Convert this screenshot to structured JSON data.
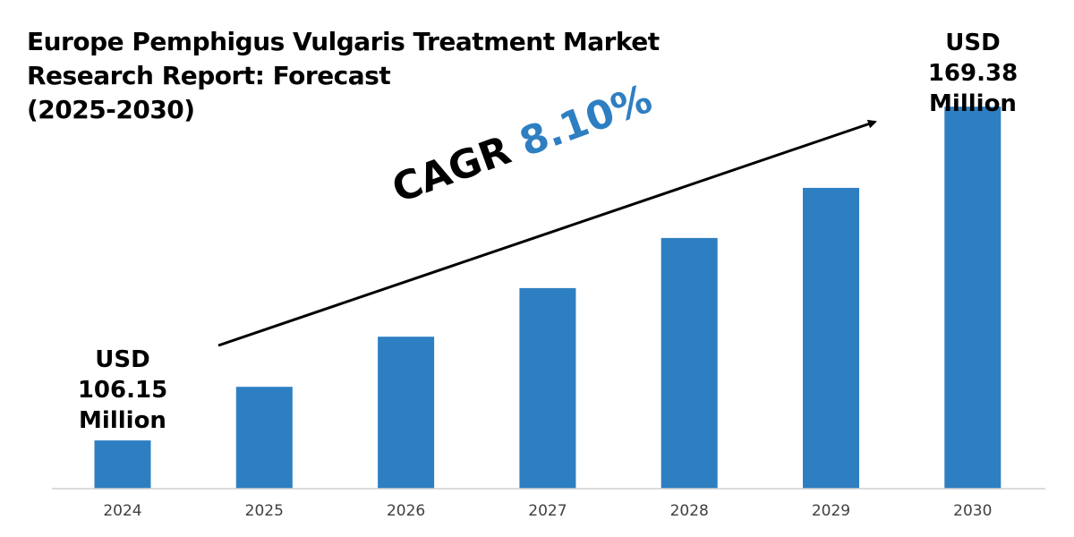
{
  "title_lines": [
    "Europe Pemphigus Vulgaris Treatment Market",
    "Research Report: Forecast",
    "(2025-2030)"
  ],
  "callouts": {
    "start": [
      "USD",
      "106.15",
      "Million"
    ],
    "end": [
      "USD",
      "169.38",
      "Million"
    ]
  },
  "cagr": {
    "label": "CAGR",
    "value": "8.10%"
  },
  "colors": {
    "bar": "#2e7fc2",
    "cagr_value": "#2e7fc2",
    "axis": "#d0d0d0",
    "tick_label": "#404040",
    "arrow": "#000000"
  },
  "chart_data": {
    "type": "bar",
    "title": "Europe Pemphigus Vulgaris Treatment Market Research Report: Forecast (2025-2030)",
    "categories": [
      "2024",
      "2025",
      "2026",
      "2027",
      "2028",
      "2029",
      "2030"
    ],
    "values": [
      106.15,
      116.3,
      125.8,
      135.0,
      144.5,
      154.0,
      169.38
    ],
    "value_unit": "USD Million",
    "xlabel": "",
    "ylabel": "",
    "ylim": [
      97,
      174
    ],
    "grid": false,
    "legend": "none",
    "annotations": [
      {
        "category": "2024",
        "text": "USD 106.15 Million"
      },
      {
        "category": "2030",
        "text": "USD 169.38 Million"
      },
      {
        "text": "CAGR 8.10%"
      }
    ]
  }
}
